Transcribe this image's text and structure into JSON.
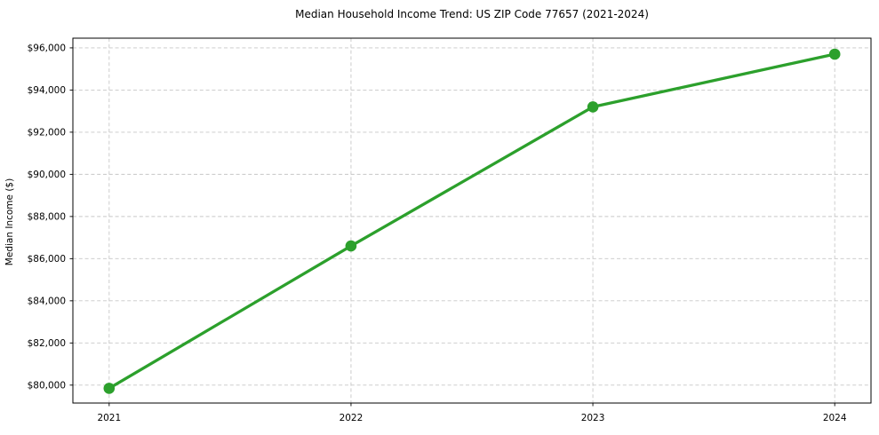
{
  "chart_data": {
    "type": "line",
    "title": "Median Household Income Trend: US ZIP Code 77657 (2021-2024)",
    "xlabel": "",
    "ylabel": "Median Income ($)",
    "x": [
      2021,
      2022,
      2023,
      2024
    ],
    "xticks": [
      2021,
      2022,
      2023,
      2024
    ],
    "xtick_labels": [
      "2021",
      "2022",
      "2023",
      "2024"
    ],
    "series": [
      {
        "name": "Median Household Income",
        "color": "#2ca02c",
        "values": [
          79850,
          86600,
          93200,
          95700
        ]
      }
    ],
    "xlim": [
      2020.85,
      2024.15
    ],
    "ylim": [
      79150,
      96460
    ],
    "yticks": [
      80000,
      82000,
      84000,
      86000,
      88000,
      90000,
      92000,
      94000,
      96000
    ],
    "ytick_labels": [
      "$80,000",
      "$82,000",
      "$84,000",
      "$86,000",
      "$88,000",
      "$90,000",
      "$92,000",
      "$94,000",
      "$96,000"
    ],
    "grid": true,
    "grid_style": "dashed",
    "legend": false,
    "marker": "circle"
  },
  "colors": {
    "background": "#ffffff",
    "text": "#000000",
    "spine": "#000000",
    "grid": "#c7c7c7",
    "line": "#2ca02c"
  }
}
